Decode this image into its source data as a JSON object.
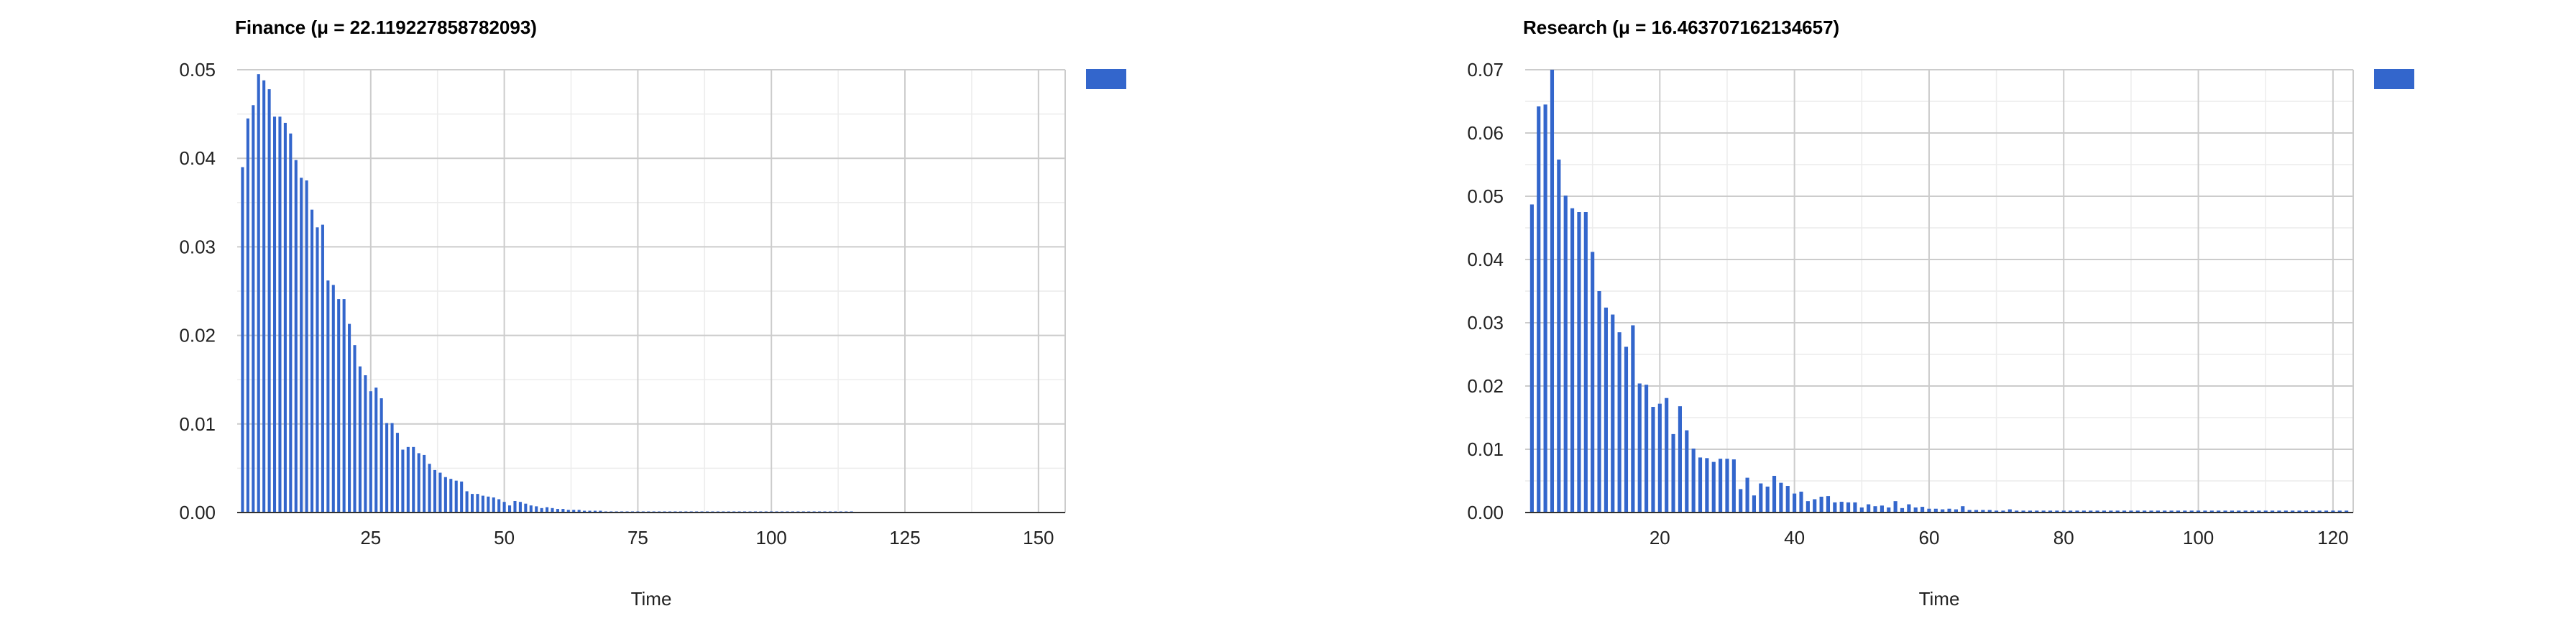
{
  "chart_data": [
    {
      "type": "bar",
      "title": "Finance (μ = 22.119227858782093)",
      "xlabel": "Time",
      "ylabel": "",
      "xlim": [
        0,
        155
      ],
      "ylim": [
        0,
        0.05
      ],
      "xticks": [
        25,
        50,
        75,
        100,
        125,
        150
      ],
      "yticks": [
        0.0,
        0.01,
        0.02,
        0.03,
        0.04,
        0.05
      ],
      "grid": true,
      "legend_position": "right",
      "color": "#3366cc",
      "x": [
        1,
        2,
        3,
        4,
        5,
        6,
        7,
        8,
        9,
        10,
        11,
        12,
        13,
        14,
        15,
        16,
        17,
        18,
        19,
        20,
        21,
        22,
        23,
        24,
        25,
        26,
        27,
        28,
        29,
        30,
        31,
        32,
        33,
        34,
        35,
        36,
        37,
        38,
        39,
        40,
        41,
        42,
        43,
        44,
        45,
        46,
        47,
        48,
        49,
        50,
        51,
        52,
        53,
        54,
        55,
        56,
        57,
        58,
        59,
        60,
        61,
        62,
        63,
        64,
        65,
        66,
        67,
        68,
        69,
        70,
        71,
        72,
        73,
        74,
        75,
        76,
        77,
        78,
        79,
        80,
        81,
        82,
        83,
        84,
        85,
        86,
        87,
        88,
        89,
        90,
        91,
        92,
        93,
        94,
        95,
        96,
        97,
        98,
        99,
        100,
        101,
        102,
        103,
        104,
        105,
        106,
        107,
        108,
        109,
        110,
        111,
        112,
        113,
        114,
        115
      ],
      "values": [
        0.039,
        0.0445,
        0.046,
        0.0495,
        0.0488,
        0.0478,
        0.0447,
        0.0447,
        0.044,
        0.0428,
        0.0398,
        0.0378,
        0.0375,
        0.0342,
        0.0322,
        0.0325,
        0.0262,
        0.0257,
        0.0241,
        0.0241,
        0.0213,
        0.0189,
        0.0165,
        0.0155,
        0.0137,
        0.0141,
        0.0129,
        0.0101,
        0.0101,
        0.009,
        0.0071,
        0.0074,
        0.0074,
        0.0067,
        0.0065,
        0.0055,
        0.0048,
        0.0045,
        0.004,
        0.0038,
        0.0036,
        0.0035,
        0.0024,
        0.0021,
        0.0021,
        0.0019,
        0.0018,
        0.0017,
        0.0015,
        0.0012,
        0.0008,
        0.0013,
        0.0012,
        0.001,
        0.0008,
        0.0007,
        0.0005,
        0.0006,
        0.0005,
        0.0004,
        0.0004,
        0.0003,
        0.0003,
        0.0003,
        0.0002,
        0.0002,
        0.0002,
        0.0002,
        0.0001,
        0.0001,
        0.0001,
        0.0001,
        0.0001,
        0.0001,
        0.0001,
        0.0001,
        0.0001,
        0.0001,
        0.0001,
        0.0001,
        0.0001,
        0.0001,
        0.0001,
        0.0001,
        0.0001,
        0.0001,
        0.0001,
        0.0001,
        0.0001,
        0.0001,
        0.0001,
        0.0001,
        0.0001,
        0.0001,
        0.0001,
        0.0001,
        0.0001,
        0.0001,
        0.0001,
        0.0001,
        0.0001,
        0.0001,
        0.0001,
        0.0001,
        0.0001,
        0.0001,
        0.0001,
        0.0001,
        0.0001,
        0.0001,
        0.0001,
        0.0001,
        0.0001,
        0.0001,
        0.0001
      ]
    },
    {
      "type": "bar",
      "title": "Research (μ = 16.463707162134657)",
      "xlabel": "Time",
      "ylabel": "",
      "xlim": [
        0,
        123
      ],
      "ylim": [
        0,
        0.07
      ],
      "xticks": [
        20,
        40,
        60,
        80,
        100,
        120
      ],
      "yticks": [
        0.0,
        0.01,
        0.02,
        0.03,
        0.04,
        0.05,
        0.06,
        0.07
      ],
      "grid": true,
      "legend_position": "right",
      "color": "#3366cc",
      "x": [
        1,
        2,
        3,
        4,
        5,
        6,
        7,
        8,
        9,
        10,
        11,
        12,
        13,
        14,
        15,
        16,
        17,
        18,
        19,
        20,
        21,
        22,
        23,
        24,
        25,
        26,
        27,
        28,
        29,
        30,
        31,
        32,
        33,
        34,
        35,
        36,
        37,
        38,
        39,
        40,
        41,
        42,
        43,
        44,
        45,
        46,
        47,
        48,
        49,
        50,
        51,
        52,
        53,
        54,
        55,
        56,
        57,
        58,
        59,
        60,
        61,
        62,
        63,
        64,
        65,
        66,
        67,
        68,
        69,
        70,
        71,
        72,
        73,
        74,
        75,
        76,
        77,
        78,
        79,
        80,
        81,
        82,
        83,
        84,
        85,
        86,
        87,
        88,
        89,
        90,
        91,
        92,
        93,
        94,
        95,
        96,
        97,
        98,
        99,
        100,
        101,
        102,
        103,
        104,
        105,
        106,
        107,
        108,
        109,
        110,
        111,
        112,
        113,
        114,
        115,
        116,
        117,
        118,
        119,
        120,
        121,
        122
      ],
      "values": [
        0.0487,
        0.0642,
        0.0645,
        0.07,
        0.0558,
        0.0501,
        0.0481,
        0.0475,
        0.0475,
        0.0412,
        0.035,
        0.0324,
        0.0313,
        0.0285,
        0.0262,
        0.0296,
        0.0204,
        0.0202,
        0.0167,
        0.0172,
        0.0181,
        0.0124,
        0.0168,
        0.013,
        0.0101,
        0.0087,
        0.0086,
        0.008,
        0.0085,
        0.0085,
        0.0084,
        0.0037,
        0.0055,
        0.0027,
        0.0046,
        0.0041,
        0.0058,
        0.0047,
        0.0042,
        0.003,
        0.0033,
        0.0018,
        0.0021,
        0.0025,
        0.0026,
        0.0016,
        0.0017,
        0.0016,
        0.0016,
        0.0008,
        0.0013,
        0.001,
        0.0011,
        0.0008,
        0.0018,
        0.0007,
        0.0013,
        0.0008,
        0.0009,
        0.0006,
        0.0006,
        0.0005,
        0.0006,
        0.0005,
        0.001,
        0.0004,
        0.0004,
        0.0004,
        0.0004,
        0.0003,
        0.0003,
        0.0005,
        0.0003,
        0.0003,
        0.0003,
        0.0003,
        0.0003,
        0.0003,
        0.0003,
        0.0003,
        0.0003,
        0.0003,
        0.0003,
        0.0003,
        0.0003,
        0.0003,
        0.0003,
        0.0003,
        0.0003,
        0.0003,
        0.0003,
        0.0003,
        0.0003,
        0.0003,
        0.0003,
        0.0003,
        0.0003,
        0.0003,
        0.0003,
        0.0003,
        0.0003,
        0.0003,
        0.0003,
        0.0003,
        0.0003,
        0.0003,
        0.0003,
        0.0003,
        0.0003,
        0.0003,
        0.0003,
        0.0003,
        0.0003,
        0.0003,
        0.0003,
        0.0003,
        0.0003,
        0.0003,
        0.0003,
        0.0003,
        0.0003,
        0.0003
      ]
    }
  ]
}
